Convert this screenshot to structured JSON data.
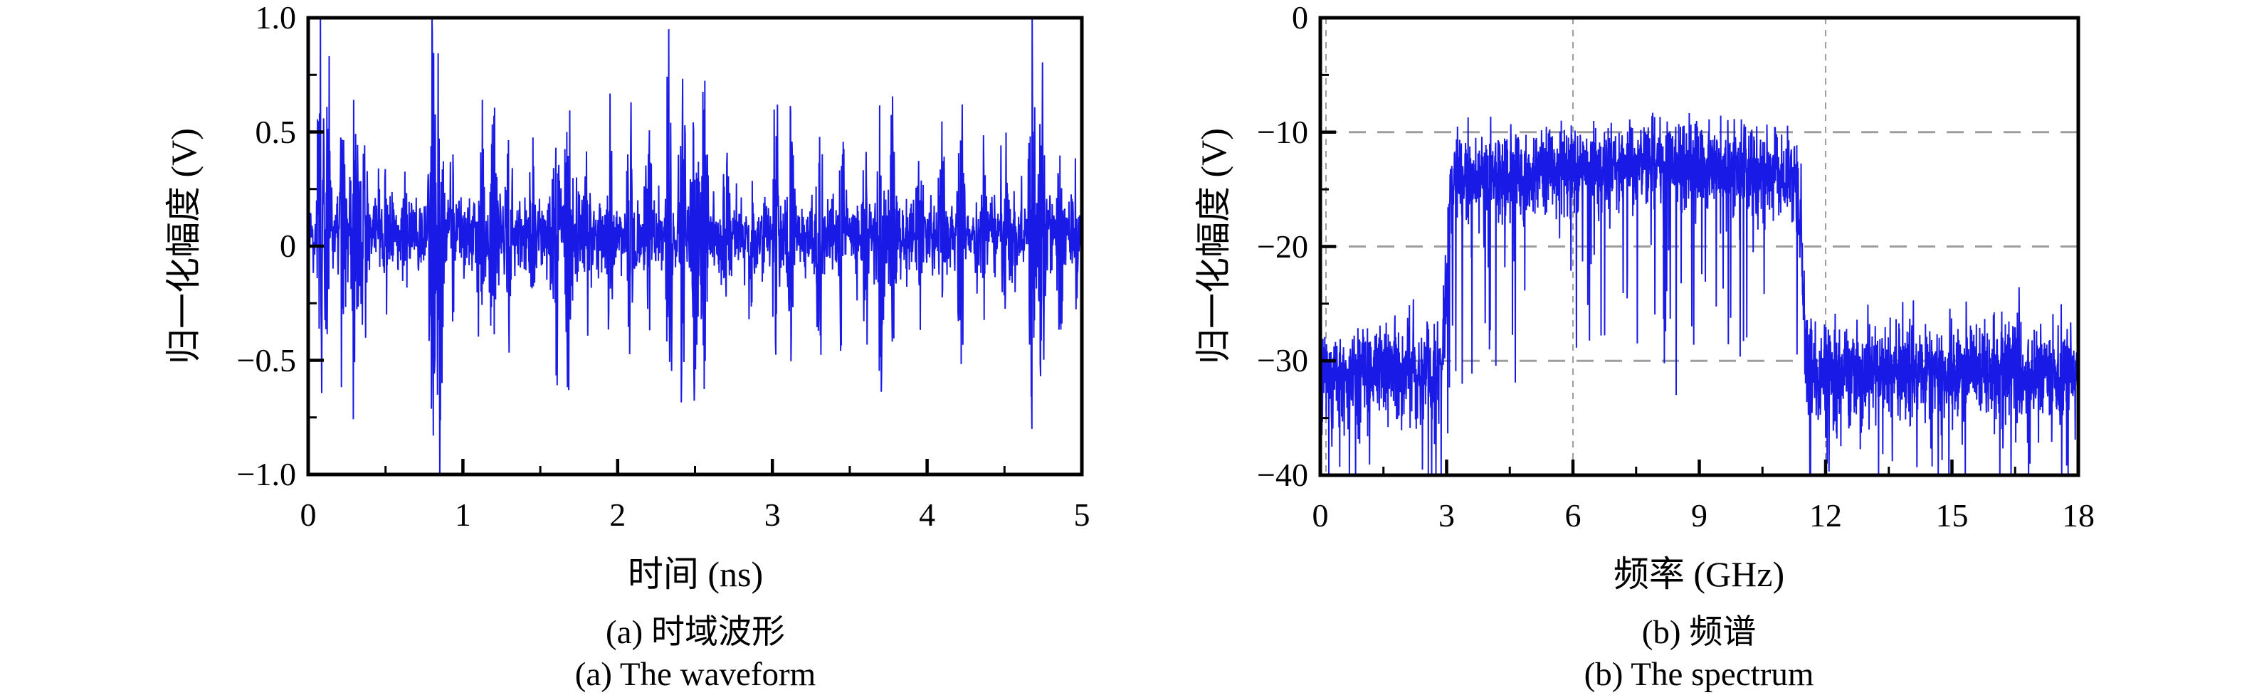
{
  "figure": {
    "background": "#ffffff",
    "line_color": "#1a1ae6",
    "axis_color": "#000000",
    "grid_color": "#9e9e9e",
    "text_color": "#000000"
  },
  "panels": [
    {
      "id": "waveform",
      "y_title": "归一化幅度 (V)",
      "x_title": "时间 (ns)",
      "caption_zh": "(a) 时域波形",
      "caption_en": "(a) The waveform",
      "y_tick_labels": [
        "1.0",
        "0.5",
        "0",
        "−0.5",
        "−1.0"
      ],
      "x_tick_labels": [
        "0",
        "1",
        "2",
        "3",
        "4",
        "5"
      ]
    },
    {
      "id": "spectrum",
      "y_title": "归一化幅度 (V)",
      "x_title": "频率 (GHz)",
      "caption_zh": "(b) 频谱",
      "caption_en": "(b) The spectrum",
      "y_tick_labels": [
        "0",
        "−10",
        "−20",
        "−30",
        "−40"
      ],
      "x_tick_labels": [
        "0",
        "3",
        "6",
        "9",
        "12",
        "15",
        "18"
      ]
    }
  ],
  "chart_data": [
    {
      "type": "line",
      "title": "(a) 时域波形 / The waveform",
      "xlabel": "时间 (ns)",
      "ylabel": "归一化幅度 (V)",
      "xlim": [
        0,
        5
      ],
      "ylim": [
        -1.0,
        1.0
      ],
      "x_major_ticks": [
        0,
        1,
        2,
        3,
        4,
        5
      ],
      "x_minor_step": 0.5,
      "y_major_ticks": [
        1.0,
        0.5,
        0,
        -0.5,
        -1.0
      ],
      "y_minor_step": 0.25,
      "grid": false,
      "legend": "none",
      "n_points": 2400,
      "baseline_mean": 0.05,
      "baseline_sigma": 0.085,
      "burst_width_ns": 0.022,
      "clip_at": 1.0,
      "bursts": [
        {
          "t": 0.08,
          "peak": 1.02
        },
        {
          "t": 0.13,
          "peak": -0.78
        },
        {
          "t": 0.22,
          "peak": 0.68
        },
        {
          "t": 0.3,
          "peak": -0.88
        },
        {
          "t": 0.36,
          "peak": 0.6
        },
        {
          "t": 0.5,
          "peak": 0.35
        },
        {
          "t": 0.63,
          "peak": 0.32
        },
        {
          "t": 0.8,
          "peak": 1.04
        },
        {
          "t": 0.85,
          "peak": -1.1
        },
        {
          "t": 0.93,
          "peak": 0.55
        },
        {
          "t": 1.12,
          "peak": 0.88
        },
        {
          "t": 1.2,
          "peak": -0.8
        },
        {
          "t": 1.3,
          "peak": 0.55
        },
        {
          "t": 1.45,
          "peak": 0.42
        },
        {
          "t": 1.6,
          "peak": 0.82
        },
        {
          "t": 1.68,
          "peak": -0.75
        },
        {
          "t": 1.8,
          "peak": 0.46
        },
        {
          "t": 1.95,
          "peak": 0.5
        },
        {
          "t": 2.08,
          "peak": 0.72
        },
        {
          "t": 2.2,
          "peak": -0.6
        },
        {
          "t": 2.33,
          "peak": 0.95
        },
        {
          "t": 2.42,
          "peak": 0.92
        },
        {
          "t": 2.5,
          "peak": -0.92
        },
        {
          "t": 2.56,
          "peak": 0.85
        },
        {
          "t": 2.7,
          "peak": 0.46
        },
        {
          "t": 2.86,
          "peak": 0.4
        },
        {
          "t": 3.02,
          "peak": 0.72
        },
        {
          "t": 3.12,
          "peak": -0.65
        },
        {
          "t": 3.3,
          "peak": 0.75
        },
        {
          "t": 3.45,
          "peak": 0.62
        },
        {
          "t": 3.6,
          "peak": 0.5
        },
        {
          "t": 3.7,
          "peak": 0.85
        },
        {
          "t": 3.78,
          "peak": -0.75
        },
        {
          "t": 3.95,
          "peak": 0.46
        },
        {
          "t": 4.1,
          "peak": 0.5
        },
        {
          "t": 4.22,
          "peak": 0.72
        },
        {
          "t": 4.36,
          "peak": 0.55
        },
        {
          "t": 4.5,
          "peak": 0.6
        },
        {
          "t": 4.68,
          "peak": 1.03
        },
        {
          "t": 4.74,
          "peak": -0.82
        },
        {
          "t": 4.86,
          "peak": 0.62
        },
        {
          "t": 4.95,
          "peak": 0.5
        }
      ]
    },
    {
      "type": "line",
      "title": "(b) 频谱 / The spectrum",
      "xlabel": "频率 (GHz)",
      "ylabel": "归一化幅度 (V)",
      "xlim": [
        0,
        18
      ],
      "ylim": [
        -40,
        0
      ],
      "x_major_ticks": [
        0,
        3,
        6,
        9,
        12,
        15,
        18
      ],
      "x_minor_step": 1.5,
      "y_major_ticks": [
        0,
        -10,
        -20,
        -30,
        -40
      ],
      "y_minor_step": 5,
      "grid": true,
      "gridlines_horizontal": [
        -10,
        -20,
        -30
      ],
      "gridlines_vertical": [
        0,
        6,
        12
      ],
      "legend": "none",
      "n_points": 3200,
      "noise_floor_mean": -31,
      "noise_floor_sigma": 2.2,
      "band_start_ghz": 3.0,
      "band_end_ghz": 11.45,
      "band_mean_level": -14,
      "band_sigma": 2.0,
      "band_top_extreme": -8.3,
      "band_mid_bump": 1.3,
      "spike_probability": 0.045,
      "floor_clip": -40
    }
  ]
}
